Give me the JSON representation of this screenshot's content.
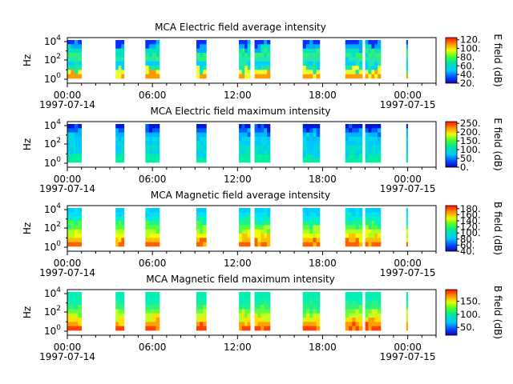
{
  "chart_data": [
    {
      "type": "heatmap",
      "title": "MCA  Electric field average intensity",
      "ylabel": "Hz",
      "y_scale": "log",
      "y_ticks": [
        {
          "e": "0"
        },
        {
          "e": "2"
        },
        {
          "e": "4"
        }
      ],
      "x_ticks": [
        "00:00",
        "06:00",
        "12:00",
        "18:00",
        "00:00"
      ],
      "x_dates": [
        "1997-07-14",
        "1997-07-15"
      ],
      "colorbar_label": "E field (dB)",
      "colorbar_range": [
        20,
        125
      ],
      "colorbar_ticks": [
        "120.",
        "100.",
        "80.",
        "60.",
        "40.",
        "20."
      ],
      "palette": "avg_e",
      "data_intervals_hours": [
        [
          0.0,
          1.0
        ],
        [
          3.4,
          4.0
        ],
        [
          5.5,
          6.5
        ],
        [
          9.1,
          9.8
        ],
        [
          12.1,
          12.9
        ],
        [
          13.2,
          14.3
        ],
        [
          16.6,
          17.8
        ],
        [
          19.6,
          20.8
        ],
        [
          21.0,
          22.1
        ],
        [
          23.9,
          24.0
        ]
      ]
    },
    {
      "type": "heatmap",
      "title": "MCA  Electric field maximum intensity",
      "ylabel": "Hz",
      "y_scale": "log",
      "y_ticks": [
        {
          "e": "0"
        },
        {
          "e": "2"
        },
        {
          "e": "4"
        }
      ],
      "x_ticks": [
        "00:00",
        "06:00",
        "12:00",
        "18:00",
        "00:00"
      ],
      "x_dates": [
        "1997-07-14",
        "1997-07-15"
      ],
      "colorbar_label": "E field (dB)",
      "colorbar_range": [
        0,
        260
      ],
      "colorbar_ticks": [
        "250.",
        "200.",
        "150.",
        "100.",
        "50.",
        "0."
      ],
      "palette": "max_e",
      "data_intervals_hours": [
        [
          0.0,
          1.0
        ],
        [
          3.4,
          4.0
        ],
        [
          5.5,
          6.5
        ],
        [
          9.1,
          9.8
        ],
        [
          12.1,
          12.9
        ],
        [
          13.2,
          14.3
        ],
        [
          16.6,
          17.8
        ],
        [
          19.6,
          20.8
        ],
        [
          21.0,
          22.1
        ],
        [
          23.9,
          24.0
        ]
      ]
    },
    {
      "type": "heatmap",
      "title": "MCA  Magnetic field average intensity",
      "ylabel": "Hz",
      "y_scale": "log",
      "y_ticks": [
        {
          "e": "0"
        },
        {
          "e": "2"
        },
        {
          "e": "4"
        }
      ],
      "x_ticks": [
        "00:00",
        "06:00",
        "12:00",
        "18:00",
        "00:00"
      ],
      "x_dates": [
        "1997-07-14",
        "1997-07-15"
      ],
      "colorbar_label": "B field (dB)",
      "colorbar_range": [
        40,
        190
      ],
      "colorbar_ticks": [
        "180.",
        "160.",
        "140.",
        "120.",
        "100.",
        "80.",
        "60.",
        "40."
      ],
      "palette": "avg_b",
      "data_intervals_hours": [
        [
          0.0,
          1.0
        ],
        [
          3.4,
          4.0
        ],
        [
          5.5,
          6.5
        ],
        [
          9.1,
          9.8
        ],
        [
          12.1,
          12.9
        ],
        [
          13.2,
          14.3
        ],
        [
          16.6,
          17.8
        ],
        [
          19.6,
          20.8
        ],
        [
          21.0,
          22.1
        ],
        [
          23.9,
          24.0
        ]
      ]
    },
    {
      "type": "heatmap",
      "title": "MCA  Magnetic field maximum intensity",
      "ylabel": "Hz",
      "y_scale": "log",
      "y_ticks": [
        {
          "e": "0"
        },
        {
          "e": "2"
        },
        {
          "e": "4"
        }
      ],
      "x_ticks": [
        "00:00",
        "06:00",
        "12:00",
        "18:00",
        "00:00"
      ],
      "x_dates": [
        "1997-07-14",
        "1997-07-15"
      ],
      "colorbar_label": "B field (dB)",
      "colorbar_range": [
        20,
        195
      ],
      "colorbar_ticks": [
        "150.",
        "100.",
        "50."
      ],
      "palette": "max_b",
      "data_intervals_hours": [
        [
          0.0,
          1.0
        ],
        [
          3.4,
          4.0
        ],
        [
          5.5,
          6.5
        ],
        [
          9.1,
          9.8
        ],
        [
          12.1,
          12.9
        ],
        [
          13.2,
          14.3
        ],
        [
          16.6,
          17.8
        ],
        [
          19.6,
          20.8
        ],
        [
          21.0,
          22.1
        ],
        [
          23.9,
          24.0
        ]
      ]
    }
  ]
}
